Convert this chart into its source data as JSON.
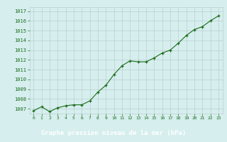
{
  "x": [
    0,
    1,
    2,
    3,
    4,
    5,
    6,
    7,
    8,
    9,
    10,
    11,
    12,
    13,
    14,
    15,
    16,
    17,
    18,
    19,
    20,
    21,
    22,
    23
  ],
  "y": [
    1006.8,
    1007.2,
    1006.7,
    1007.1,
    1007.3,
    1007.4,
    1007.4,
    1007.8,
    1008.7,
    1009.4,
    1010.5,
    1011.4,
    1011.9,
    1011.8,
    1011.8,
    1012.2,
    1012.7,
    1013.0,
    1013.7,
    1014.5,
    1015.1,
    1015.4,
    1016.0,
    1016.5
  ],
  "line_color": "#1a6b1a",
  "marker_color": "#1a6b1a",
  "bg_color": "#d6eeee",
  "grid_color": "#b8d0cc",
  "tick_color": "#1a6b1a",
  "xlabel": "Graphe pression niveau de la mer (hPa)",
  "xlabel_bg": "#1a6b1a",
  "xlabel_fg": "#ffffff",
  "ylim_min": 1006.5,
  "ylim_max": 1017.4,
  "yticks": [
    1007,
    1008,
    1009,
    1010,
    1011,
    1012,
    1013,
    1014,
    1015,
    1016,
    1017
  ],
  "xticks": [
    0,
    1,
    2,
    3,
    4,
    5,
    6,
    7,
    8,
    9,
    10,
    11,
    12,
    13,
    14,
    15,
    16,
    17,
    18,
    19,
    20,
    21,
    22,
    23
  ]
}
